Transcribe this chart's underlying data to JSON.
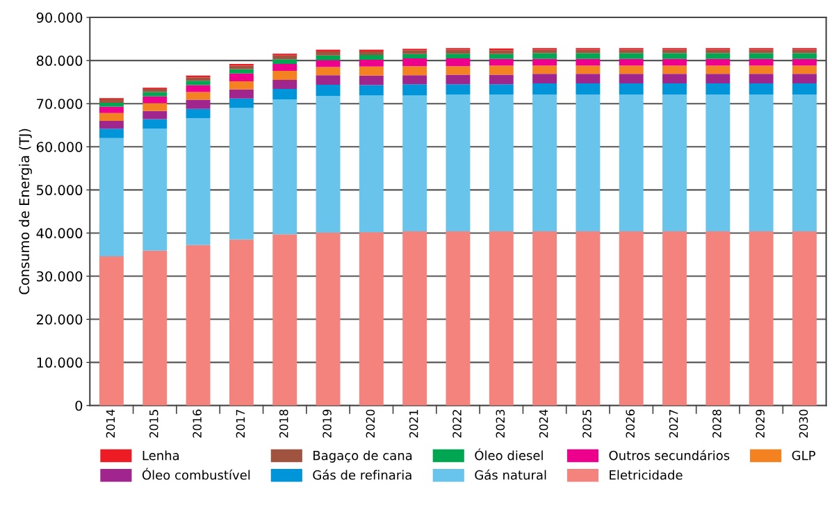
{
  "chart_data": {
    "type": "bar",
    "stacked": true,
    "ylabel": "Consumo de Energia (TJ)",
    "categories": [
      "2014",
      "2015",
      "2016",
      "2017",
      "2018",
      "2019",
      "2020",
      "2021",
      "2022",
      "2023",
      "2024",
      "2025",
      "2026",
      "2027",
      "2028",
      "2029",
      "2030"
    ],
    "series": [
      {
        "name": "Eletricidade",
        "color": "#f4837d",
        "values": [
          34600,
          35900,
          37200,
          38500,
          39700,
          40100,
          40200,
          40400,
          40400,
          40400,
          40400,
          40400,
          40400,
          40400,
          40400,
          40400,
          40400
        ]
      },
      {
        "name": "Gás natural",
        "color": "#68c4ea",
        "values": [
          27400,
          28300,
          29400,
          30500,
          31300,
          31700,
          31700,
          31500,
          31700,
          31700,
          31700,
          31700,
          31700,
          31700,
          31700,
          31700,
          31700
        ]
      },
      {
        "name": "Gás de refinaria",
        "color": "#0095d9",
        "values": [
          2200,
          2200,
          2200,
          2200,
          2400,
          2600,
          2400,
          2600,
          2400,
          2400,
          2600,
          2600,
          2600,
          2600,
          2600,
          2600,
          2600
        ]
      },
      {
        "name": "Óleo combustível",
        "color": "#a0258c",
        "values": [
          1800,
          1900,
          2100,
          2100,
          2100,
          2200,
          2200,
          2100,
          2200,
          2200,
          2200,
          2200,
          2200,
          2200,
          2200,
          2200,
          2200
        ]
      },
      {
        "name": "GLP",
        "color": "#f58220",
        "values": [
          1800,
          1800,
          1800,
          1900,
          2100,
          1900,
          2100,
          2100,
          2000,
          2100,
          1900,
          1900,
          1900,
          1900,
          1900,
          1900,
          1900
        ]
      },
      {
        "name": "Outros secundários",
        "color": "#ec008c",
        "values": [
          1500,
          1600,
          1600,
          1800,
          1600,
          1600,
          1600,
          1800,
          1800,
          1600,
          1600,
          1600,
          1600,
          1600,
          1600,
          1600,
          1600
        ]
      },
      {
        "name": "Óleo diesel",
        "color": "#00a651",
        "values": [
          900,
          1000,
          1000,
          1000,
          1100,
          1100,
          1100,
          1000,
          1100,
          1100,
          1300,
          1300,
          1300,
          1300,
          1300,
          1300,
          1300
        ]
      },
      {
        "name": "Bagaço de cana",
        "color": "#a0543f",
        "values": [
          800,
          700,
          800,
          800,
          900,
          900,
          800,
          900,
          900,
          900,
          800,
          800,
          800,
          800,
          800,
          800,
          800
        ]
      },
      {
        "name": "Lenha",
        "color": "#ed1c24",
        "values": [
          300,
          300,
          400,
          400,
          400,
          400,
          400,
          300,
          400,
          400,
          400,
          400,
          400,
          400,
          400,
          400,
          400
        ]
      }
    ],
    "ylim": [
      0,
      90000
    ],
    "yticks": [
      {
        "value": 0,
        "label": "0"
      },
      {
        "value": 10000,
        "label": "10.000"
      },
      {
        "value": 20000,
        "label": "20.000"
      },
      {
        "value": 30000,
        "label": "30.000"
      },
      {
        "value": 40000,
        "label": "40.000"
      },
      {
        "value": 50000,
        "label": "50.000"
      },
      {
        "value": 60000,
        "label": "60.000"
      },
      {
        "value": 70000,
        "label": "70.000"
      },
      {
        "value": 80000,
        "label": "80.000"
      },
      {
        "value": 90000,
        "label": "90.000"
      }
    ],
    "grid": "y",
    "legend": "bottom"
  }
}
